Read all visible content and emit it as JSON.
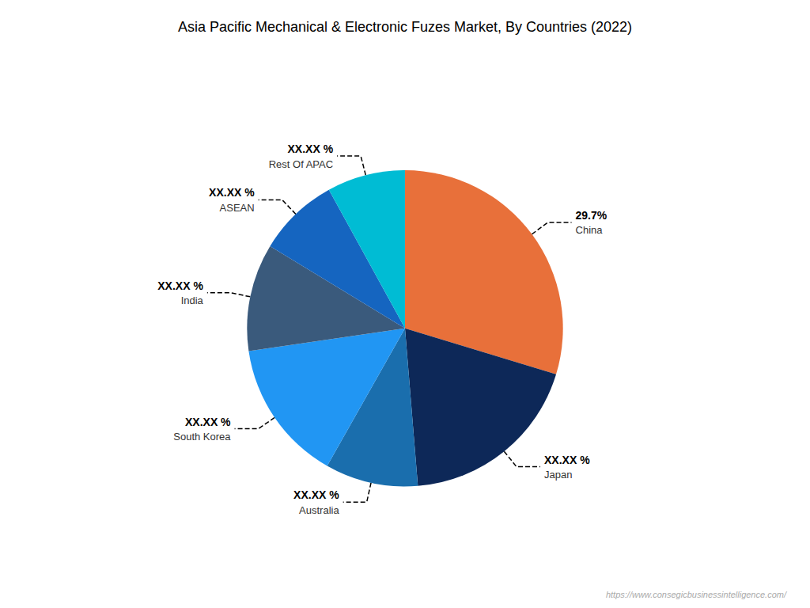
{
  "chart_data": {
    "type": "pie",
    "title": "Asia Pacific Mechanical & Electronic Fuzes Market, By Countries (2022)",
    "categories": [
      "China",
      "Japan",
      "Australia",
      "South Korea",
      "India",
      "ASEAN",
      "Rest Of APAC"
    ],
    "values": [
      29.7,
      19.0,
      9.5,
      14.5,
      11.0,
      8.3,
      8.0
    ],
    "value_labels": [
      "29.7%",
      "XX.XX %",
      "XX.XX %",
      "XX.XX %",
      "XX.XX %",
      "XX.XX %",
      "XX.XX %"
    ],
    "colors": [
      "#E8703A",
      "#0D2858",
      "#1A6EAD",
      "#2196F3",
      "#3A5A7C",
      "#1565C0",
      "#00BCD4"
    ],
    "data_labels": true,
    "annotations": [
      "https://www.consegicbusinessintelligence.com/"
    ]
  }
}
